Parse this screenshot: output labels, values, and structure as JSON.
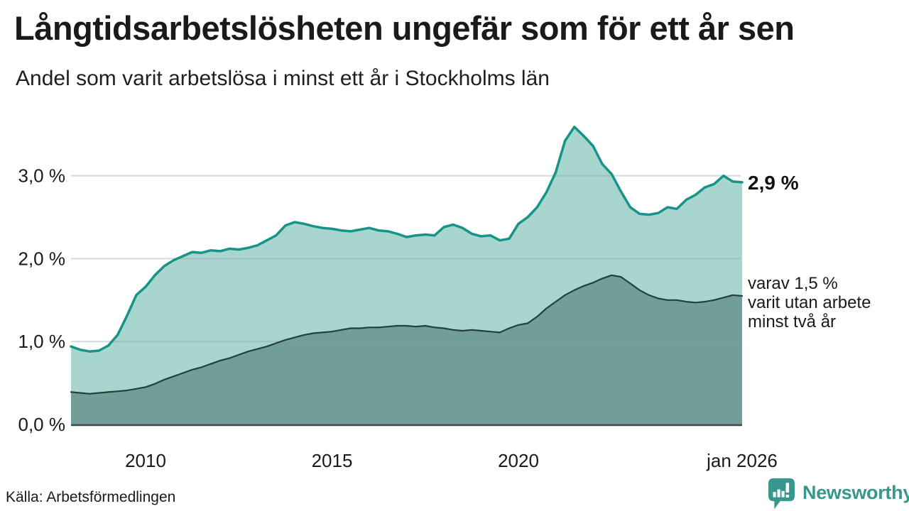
{
  "chart_data": {
    "type": "area",
    "title": "Långtidsarbetslösheten ungefär som för ett år sen",
    "subtitle": "Andel som varit arbetslösa i minst ett år i Stockholms län",
    "source": "Källa: Arbetsförmedlingen",
    "unit": "%",
    "x_start": 2008.0,
    "x_step": 0.25,
    "x_range": [
      2008.0,
      2026.0
    ],
    "ylim": [
      0,
      3.7
    ],
    "grid": true,
    "grid_color": "#8aa0a0",
    "axis_color": "#3f4a48",
    "text_color": "#1a1a1a",
    "yticks": [
      {
        "value": 0,
        "label": "0,0 %"
      },
      {
        "value": 1,
        "label": "1,0 %"
      },
      {
        "value": 2,
        "label": "2,0 %"
      },
      {
        "value": 3,
        "label": "3,0 %"
      }
    ],
    "xticks": [
      {
        "value": 2010,
        "label": "2010"
      },
      {
        "value": 2015,
        "label": "2015"
      },
      {
        "value": 2020,
        "label": "2020"
      },
      {
        "value": 2026,
        "label": "jan 2026"
      }
    ],
    "end_label_total": "2,9 %",
    "annotation_lines": [
      "varav 1,5 %",
      "varit utan arbete",
      "minst två år"
    ],
    "series": [
      {
        "id": "minst-ett-ar",
        "name": "Andel arbetslösa minst ett år",
        "line_color": "#16948a",
        "fill_color": "#a8d5ce",
        "values": [
          0.94,
          0.9,
          0.88,
          0.89,
          0.95,
          1.08,
          1.31,
          1.56,
          1.66,
          1.8,
          1.91,
          1.98,
          2.03,
          2.08,
          2.07,
          2.1,
          2.09,
          2.12,
          2.11,
          2.13,
          2.16,
          2.22,
          2.28,
          2.4,
          2.44,
          2.42,
          2.39,
          2.37,
          2.36,
          2.34,
          2.33,
          2.35,
          2.37,
          2.34,
          2.33,
          2.3,
          2.26,
          2.28,
          2.29,
          2.28,
          2.38,
          2.41,
          2.37,
          2.3,
          2.27,
          2.28,
          2.22,
          2.24,
          2.42,
          2.5,
          2.62,
          2.8,
          3.04,
          3.42,
          3.59,
          3.48,
          3.36,
          3.14,
          3.02,
          2.81,
          2.62,
          2.54,
          2.53,
          2.55,
          2.62,
          2.6,
          2.71,
          2.77,
          2.86,
          2.9,
          3.0,
          2.93,
          2.92
        ]
      },
      {
        "id": "minst-tva-ar",
        "name": "varav utan arbete minst två år",
        "line_color": "#24403d",
        "fill_color": "#719e98",
        "values": [
          0.39,
          0.38,
          0.37,
          0.38,
          0.39,
          0.4,
          0.41,
          0.43,
          0.45,
          0.49,
          0.54,
          0.58,
          0.62,
          0.66,
          0.69,
          0.73,
          0.77,
          0.8,
          0.84,
          0.88,
          0.91,
          0.94,
          0.98,
          1.02,
          1.05,
          1.08,
          1.1,
          1.11,
          1.12,
          1.14,
          1.16,
          1.16,
          1.17,
          1.17,
          1.18,
          1.19,
          1.19,
          1.18,
          1.19,
          1.17,
          1.16,
          1.14,
          1.13,
          1.14,
          1.13,
          1.12,
          1.11,
          1.16,
          1.2,
          1.22,
          1.3,
          1.4,
          1.48,
          1.56,
          1.62,
          1.67,
          1.71,
          1.76,
          1.8,
          1.78,
          1.7,
          1.62,
          1.56,
          1.52,
          1.5,
          1.5,
          1.48,
          1.47,
          1.48,
          1.5,
          1.53,
          1.56,
          1.55
        ]
      }
    ]
  },
  "footer": {
    "brand": "Newsworthy"
  }
}
